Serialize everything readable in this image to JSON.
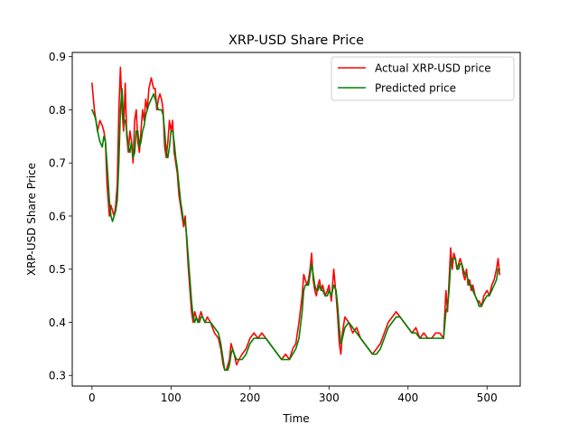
{
  "chart_data": {
    "type": "line",
    "title": "XRP-USD Share Price",
    "xlabel": "Time",
    "ylabel": "XRP-USD Share Price",
    "xlim": [
      -25,
      542
    ],
    "ylim": [
      0.28,
      0.908
    ],
    "xticks": [
      0,
      100,
      200,
      300,
      400,
      500
    ],
    "yticks": [
      0.3,
      0.4,
      0.5,
      0.6,
      0.7,
      0.8,
      0.9
    ],
    "legend_position": "top-right",
    "grid": false,
    "series": [
      {
        "name": "Actual XRP-USD price",
        "color": "#ff0000",
        "x": [
          0,
          3,
          5,
          7,
          10,
          13,
          15,
          17,
          19,
          22,
          24,
          26,
          28,
          30,
          32,
          34,
          36,
          38,
          40,
          42,
          44,
          46,
          48,
          50,
          52,
          54,
          56,
          58,
          60,
          62,
          64,
          66,
          68,
          70,
          72,
          75,
          78,
          80,
          82,
          84,
          86,
          88,
          90,
          92,
          94,
          96,
          98,
          100,
          102,
          104,
          106,
          108,
          110,
          112,
          114,
          116,
          118,
          120,
          122,
          124,
          126,
          128,
          130,
          132,
          134,
          136,
          138,
          140,
          143,
          146,
          150,
          155,
          160,
          163,
          166,
          168,
          170,
          172,
          174,
          176,
          178,
          180,
          183,
          186,
          190,
          195,
          200,
          205,
          210,
          215,
          220,
          225,
          230,
          235,
          240,
          245,
          250,
          254,
          258,
          262,
          266,
          268,
          270,
          272,
          274,
          276,
          278,
          280,
          282,
          284,
          286,
          288,
          290,
          292,
          295,
          298,
          300,
          303,
          306,
          309,
          311,
          313,
          315,
          317,
          320,
          325,
          330,
          335,
          340,
          345,
          350,
          355,
          360,
          365,
          370,
          375,
          380,
          385,
          390,
          395,
          400,
          405,
          410,
          415,
          420,
          425,
          430,
          435,
          440,
          445,
          448,
          450,
          452,
          454,
          456,
          458,
          460,
          462,
          464,
          466,
          468,
          470,
          472,
          474,
          476,
          478,
          480,
          482,
          485,
          488,
          490,
          493,
          496,
          500,
          503,
          506,
          509,
          512,
          514,
          516
        ],
        "y": [
          0.85,
          0.8,
          0.78,
          0.76,
          0.78,
          0.77,
          0.76,
          0.74,
          0.66,
          0.6,
          0.62,
          0.61,
          0.6,
          0.62,
          0.66,
          0.8,
          0.88,
          0.8,
          0.76,
          0.85,
          0.75,
          0.72,
          0.76,
          0.74,
          0.7,
          0.78,
          0.8,
          0.74,
          0.72,
          0.76,
          0.8,
          0.78,
          0.82,
          0.8,
          0.84,
          0.86,
          0.84,
          0.84,
          0.8,
          0.82,
          0.83,
          0.82,
          0.8,
          0.73,
          0.71,
          0.74,
          0.78,
          0.76,
          0.78,
          0.72,
          0.7,
          0.68,
          0.64,
          0.62,
          0.6,
          0.58,
          0.6,
          0.55,
          0.5,
          0.46,
          0.42,
          0.4,
          0.42,
          0.41,
          0.4,
          0.41,
          0.42,
          0.41,
          0.4,
          0.41,
          0.4,
          0.38,
          0.37,
          0.35,
          0.32,
          0.31,
          0.31,
          0.32,
          0.33,
          0.36,
          0.35,
          0.34,
          0.32,
          0.33,
          0.34,
          0.35,
          0.37,
          0.38,
          0.37,
          0.38,
          0.37,
          0.36,
          0.35,
          0.34,
          0.33,
          0.34,
          0.33,
          0.35,
          0.36,
          0.4,
          0.45,
          0.49,
          0.48,
          0.47,
          0.48,
          0.5,
          0.53,
          0.48,
          0.46,
          0.45,
          0.47,
          0.48,
          0.46,
          0.47,
          0.45,
          0.46,
          0.47,
          0.44,
          0.5,
          0.45,
          0.41,
          0.36,
          0.34,
          0.38,
          0.41,
          0.4,
          0.38,
          0.39,
          0.37,
          0.36,
          0.35,
          0.34,
          0.35,
          0.36,
          0.38,
          0.4,
          0.41,
          0.42,
          0.41,
          0.4,
          0.39,
          0.38,
          0.39,
          0.37,
          0.38,
          0.37,
          0.37,
          0.38,
          0.38,
          0.37,
          0.46,
          0.42,
          0.48,
          0.54,
          0.5,
          0.53,
          0.52,
          0.5,
          0.51,
          0.52,
          0.51,
          0.49,
          0.48,
          0.5,
          0.47,
          0.48,
          0.46,
          0.47,
          0.45,
          0.44,
          0.44,
          0.43,
          0.45,
          0.46,
          0.45,
          0.47,
          0.48,
          0.5,
          0.52,
          0.49
        ]
      },
      {
        "name": "Predicted price",
        "color": "#008000",
        "x": [
          0,
          3,
          5,
          7,
          10,
          13,
          15,
          17,
          19,
          22,
          24,
          26,
          28,
          30,
          32,
          34,
          36,
          38,
          40,
          42,
          44,
          46,
          48,
          50,
          52,
          54,
          56,
          58,
          60,
          62,
          64,
          66,
          68,
          70,
          72,
          75,
          78,
          80,
          82,
          84,
          86,
          88,
          90,
          92,
          94,
          96,
          98,
          100,
          102,
          104,
          106,
          108,
          110,
          112,
          114,
          116,
          118,
          120,
          122,
          124,
          126,
          128,
          130,
          132,
          134,
          136,
          138,
          140,
          143,
          146,
          150,
          155,
          160,
          163,
          166,
          168,
          170,
          172,
          174,
          176,
          178,
          180,
          183,
          186,
          190,
          195,
          200,
          205,
          210,
          215,
          220,
          225,
          230,
          235,
          240,
          245,
          250,
          254,
          258,
          262,
          266,
          268,
          270,
          272,
          274,
          276,
          278,
          280,
          282,
          284,
          286,
          288,
          290,
          292,
          295,
          298,
          300,
          303,
          306,
          309,
          311,
          313,
          315,
          317,
          320,
          325,
          330,
          335,
          340,
          345,
          350,
          355,
          360,
          365,
          370,
          375,
          380,
          385,
          390,
          395,
          400,
          405,
          410,
          415,
          420,
          425,
          430,
          435,
          440,
          445,
          448,
          450,
          452,
          454,
          456,
          458,
          460,
          462,
          464,
          466,
          468,
          470,
          472,
          474,
          476,
          478,
          480,
          482,
          485,
          488,
          490,
          493,
          496,
          500,
          503,
          506,
          509,
          512,
          514,
          516
        ],
        "y": [
          0.8,
          0.79,
          0.78,
          0.76,
          0.74,
          0.73,
          0.75,
          0.74,
          0.7,
          0.63,
          0.6,
          0.59,
          0.6,
          0.61,
          0.63,
          0.7,
          0.8,
          0.84,
          0.78,
          0.78,
          0.76,
          0.73,
          0.72,
          0.74,
          0.71,
          0.72,
          0.76,
          0.76,
          0.73,
          0.74,
          0.76,
          0.77,
          0.79,
          0.8,
          0.81,
          0.82,
          0.83,
          0.82,
          0.81,
          0.8,
          0.8,
          0.8,
          0.79,
          0.76,
          0.72,
          0.71,
          0.73,
          0.76,
          0.76,
          0.74,
          0.71,
          0.69,
          0.66,
          0.63,
          0.61,
          0.59,
          0.59,
          0.56,
          0.52,
          0.48,
          0.44,
          0.41,
          0.4,
          0.41,
          0.4,
          0.4,
          0.41,
          0.41,
          0.4,
          0.4,
          0.4,
          0.39,
          0.38,
          0.36,
          0.33,
          0.31,
          0.31,
          0.31,
          0.32,
          0.34,
          0.35,
          0.34,
          0.33,
          0.33,
          0.33,
          0.34,
          0.36,
          0.37,
          0.37,
          0.37,
          0.37,
          0.36,
          0.35,
          0.34,
          0.33,
          0.33,
          0.33,
          0.34,
          0.35,
          0.37,
          0.42,
          0.46,
          0.47,
          0.47,
          0.47,
          0.49,
          0.51,
          0.49,
          0.47,
          0.46,
          0.46,
          0.47,
          0.46,
          0.46,
          0.45,
          0.45,
          0.46,
          0.45,
          0.47,
          0.46,
          0.43,
          0.39,
          0.36,
          0.37,
          0.39,
          0.4,
          0.39,
          0.38,
          0.37,
          0.36,
          0.35,
          0.34,
          0.34,
          0.35,
          0.37,
          0.39,
          0.4,
          0.41,
          0.41,
          0.4,
          0.39,
          0.38,
          0.38,
          0.37,
          0.37,
          0.37,
          0.37,
          0.37,
          0.37,
          0.37,
          0.42,
          0.43,
          0.46,
          0.51,
          0.52,
          0.52,
          0.52,
          0.5,
          0.5,
          0.51,
          0.51,
          0.5,
          0.49,
          0.49,
          0.48,
          0.47,
          0.47,
          0.46,
          0.45,
          0.44,
          0.43,
          0.43,
          0.44,
          0.45,
          0.45,
          0.46,
          0.47,
          0.48,
          0.5,
          0.5
        ]
      }
    ]
  }
}
